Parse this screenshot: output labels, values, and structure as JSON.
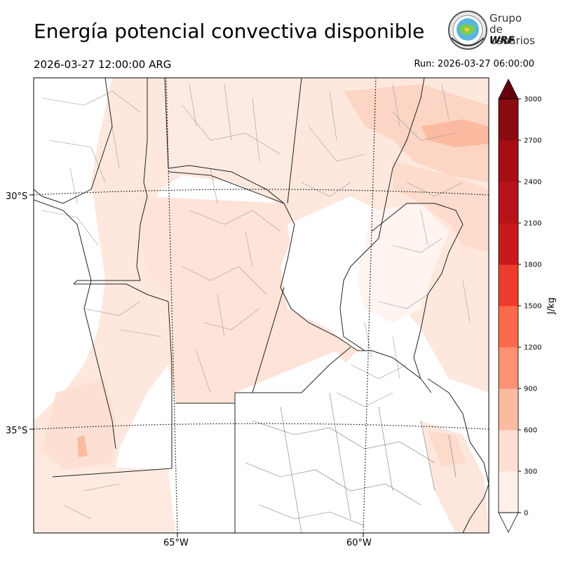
{
  "title": "Energía potencial convectiva disponible",
  "valid_time": "2026-03-27 12:00:00 ARG",
  "run_time": "Run: 2026-03-27 06:00:00",
  "logo": {
    "line1": "Grupo de",
    "line2": "Usuarios",
    "line3": "WRF"
  },
  "axes": {
    "lat_labels": [
      "30°S",
      "35°S"
    ],
    "lon_labels": [
      "65°W",
      "60°W"
    ]
  },
  "colorbar": {
    "unit": "J/kg",
    "ticks": [
      "0",
      "300",
      "600",
      "900",
      "1200",
      "1500",
      "1800",
      "2100",
      "2400",
      "2700",
      "3000"
    ],
    "colors": [
      "#fff0eb",
      "#fee0d2",
      "#fcbba1",
      "#fc9272",
      "#fb6a4a",
      "#ef3b2c",
      "#cb181d",
      "#b5141b",
      "#a50f15",
      "#8a0b10"
    ],
    "over_color": "#67000d",
    "under_color": "#ffffff"
  }
}
